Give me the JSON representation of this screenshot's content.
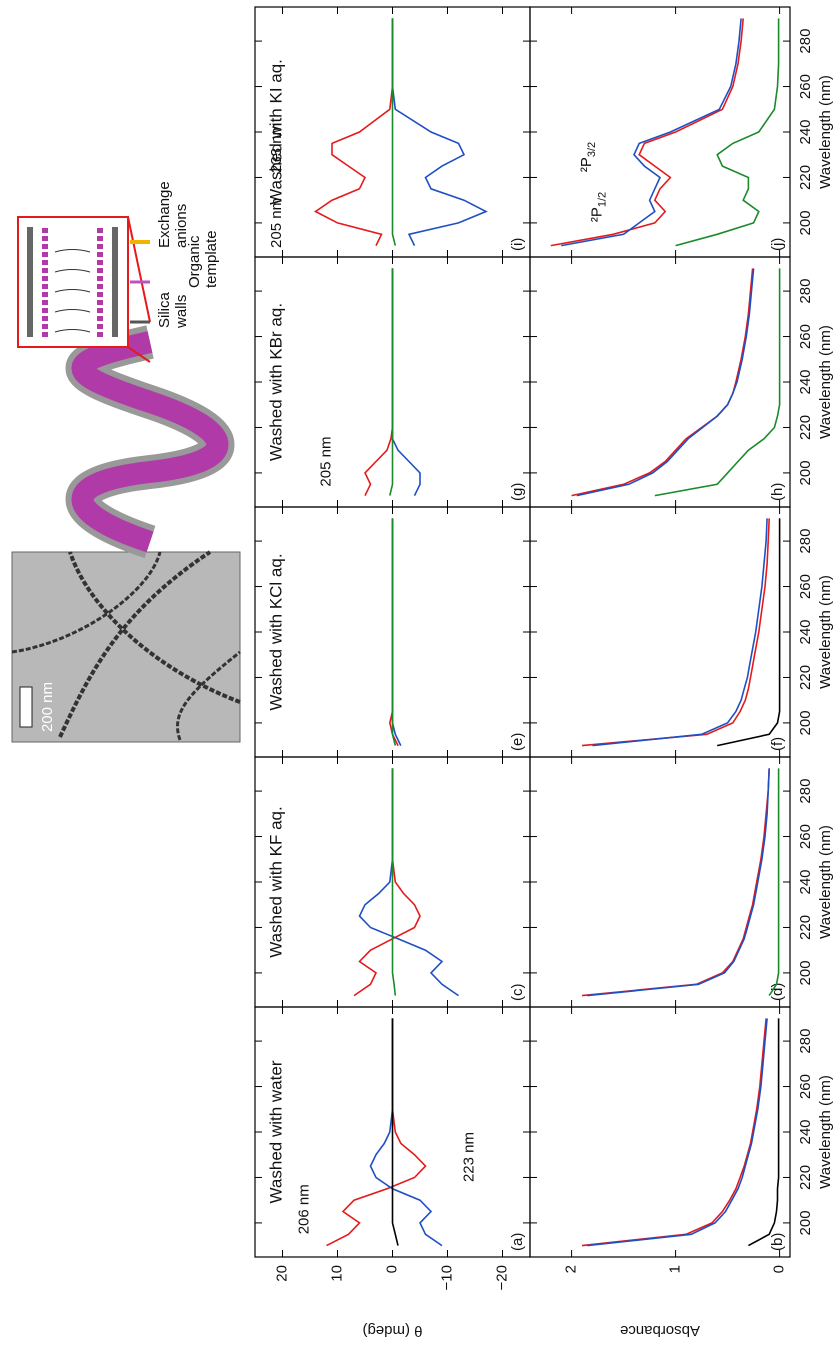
{
  "chart_data": [
    {
      "type": "line",
      "title": "Washed with water",
      "label": "(a)",
      "ylabel": "θ (mdeg)",
      "x": [
        190,
        195,
        200,
        205,
        210,
        215,
        220,
        225,
        230,
        235,
        240,
        250,
        260,
        270,
        280,
        290
      ],
      "series": [
        {
          "color": "#e41a1c",
          "values": [
            12,
            8,
            6,
            9,
            7,
            1,
            -4,
            -6,
            -4,
            -1.5,
            -0.5,
            0,
            0,
            0,
            0,
            0
          ]
        },
        {
          "color": "#1f4fc4",
          "values": [
            -9,
            -6,
            -5,
            -7,
            -5,
            0,
            3,
            4,
            3,
            1.5,
            0.5,
            0,
            0,
            0,
            0,
            0
          ]
        },
        {
          "color": "#000000",
          "values": [
            -1,
            -0.5,
            0,
            0,
            0,
            0,
            0,
            0,
            0,
            0,
            0,
            0,
            0,
            0,
            0,
            0
          ]
        }
      ],
      "annotations": [
        "206 nm",
        "223 nm"
      ],
      "xlim": [
        185,
        295
      ],
      "ylim": [
        -25,
        25
      ],
      "xticks": [
        200,
        220,
        240,
        260,
        280
      ],
      "yticks": [
        {
          "value": -20,
          "label": "−20"
        },
        {
          "value": -10,
          "label": "−10"
        },
        0,
        10,
        20
      ]
    },
    {
      "type": "line",
      "title": "Washed with KF aq.",
      "label": "(c)",
      "x": [
        190,
        195,
        200,
        205,
        210,
        215,
        220,
        225,
        230,
        235,
        240,
        250,
        260,
        270,
        280,
        290
      ],
      "series": [
        {
          "color": "#e41a1c",
          "values": [
            7,
            4,
            3,
            6,
            4,
            0,
            -4,
            -5,
            -4,
            -2,
            -0.5,
            0,
            0,
            0,
            0,
            0
          ]
        },
        {
          "color": "#1f4fc4",
          "values": [
            -12,
            -9,
            -7,
            -9,
            -6,
            -1,
            4,
            6,
            5,
            2.5,
            0.5,
            0,
            0,
            0,
            0,
            0
          ]
        },
        {
          "color": "#1a8a2a",
          "values": [
            -0.5,
            -0.3,
            0,
            0,
            0,
            0,
            0,
            0,
            0,
            0,
            0,
            0,
            0,
            0,
            0,
            0
          ]
        }
      ],
      "xlim": [
        185,
        295
      ],
      "ylim": [
        -25,
        25
      ],
      "xticks": [
        200,
        220,
        240,
        260,
        280
      ],
      "yticks": [
        -20,
        -10,
        0,
        10,
        20
      ]
    },
    {
      "type": "line",
      "title": "Washed with KCl aq.",
      "label": "(e)",
      "x": [
        190,
        195,
        200,
        205,
        210,
        215,
        220,
        225,
        230,
        235,
        240,
        250,
        260,
        270,
        280,
        290
      ],
      "series": [
        {
          "color": "#e41a1c",
          "values": [
            -1,
            0,
            0.5,
            0,
            0,
            0,
            0,
            0,
            0,
            0,
            0,
            0,
            0,
            0,
            0,
            0
          ]
        },
        {
          "color": "#1f4fc4",
          "values": [
            -1.5,
            -0.5,
            0,
            0,
            0,
            0,
            0,
            0,
            0,
            0,
            0,
            0,
            0,
            0,
            0,
            0
          ]
        },
        {
          "color": "#1a8a2a",
          "values": [
            -0.5,
            0,
            0,
            0,
            0,
            0,
            0,
            0,
            0,
            0,
            0,
            0,
            0,
            0,
            0,
            0
          ]
        }
      ],
      "xlim": [
        185,
        295
      ],
      "ylim": [
        -25,
        25
      ],
      "xticks": [
        200,
        220,
        240,
        260,
        280
      ],
      "yticks": [
        -20,
        -10,
        0,
        10,
        20
      ]
    },
    {
      "type": "line",
      "title": "Washed with KBr aq.",
      "label": "(g)",
      "x": [
        190,
        195,
        200,
        205,
        210,
        215,
        220,
        225,
        230,
        235,
        240,
        250,
        260,
        270,
        280,
        290
      ],
      "series": [
        {
          "color": "#e41a1c",
          "values": [
            5,
            4,
            5,
            3,
            1,
            0.3,
            0,
            0,
            0,
            0,
            0,
            0,
            0,
            0,
            0,
            0
          ]
        },
        {
          "color": "#1f4fc4",
          "values": [
            -4,
            -5,
            -5,
            -3,
            -1,
            0,
            0,
            0,
            0,
            0,
            0,
            0,
            0,
            0,
            0,
            0
          ]
        },
        {
          "color": "#1a8a2a",
          "values": [
            0.5,
            0,
            0,
            0,
            0,
            0,
            0,
            0,
            0,
            0,
            0,
            0,
            0,
            0,
            0,
            0
          ]
        }
      ],
      "annotations": [
        "205 nm"
      ],
      "xlim": [
        185,
        295
      ],
      "ylim": [
        -25,
        25
      ],
      "xticks": [
        200,
        220,
        240,
        260,
        280
      ],
      "yticks": [
        -20,
        -10,
        0,
        10,
        20
      ]
    },
    {
      "type": "line",
      "title": "Washed with KI aq.",
      "label": "(i)",
      "x": [
        190,
        195,
        200,
        205,
        210,
        215,
        220,
        225,
        230,
        235,
        240,
        250,
        260,
        270,
        280,
        290
      ],
      "series": [
        {
          "color": "#e41a1c",
          "values": [
            3,
            2,
            10,
            14,
            11,
            6,
            5,
            8,
            11,
            11,
            6,
            0.5,
            0,
            0,
            0,
            0
          ]
        },
        {
          "color": "#1f4fc4",
          "values": [
            -4,
            -3,
            -12,
            -17,
            -13,
            -7,
            -6,
            -9,
            -13,
            -12,
            -7,
            -0.5,
            0,
            0,
            0,
            0
          ]
        },
        {
          "color": "#1a8a2a",
          "values": [
            -0.5,
            0,
            0,
            0,
            0,
            0,
            0,
            0,
            0,
            0,
            0,
            0,
            0,
            0,
            0,
            0
          ]
        }
      ],
      "annotations": [
        "205 nm",
        "233 nm"
      ],
      "xlim": [
        185,
        295
      ],
      "ylim": [
        -25,
        25
      ],
      "xticks": [
        200,
        220,
        240,
        260,
        280
      ],
      "yticks": [
        -20,
        -10,
        0,
        10,
        20
      ]
    },
    {
      "type": "line",
      "label": "(b)",
      "ylabel": "Absorbance",
      "xlabel": "Wavelength (nm)",
      "x": [
        190,
        195,
        200,
        205,
        210,
        215,
        220,
        225,
        230,
        235,
        240,
        250,
        260,
        270,
        280,
        290
      ],
      "series": [
        {
          "color": "#e41a1c",
          "values": [
            1.9,
            0.9,
            0.65,
            0.55,
            0.48,
            0.42,
            0.38,
            0.34,
            0.31,
            0.28,
            0.26,
            0.22,
            0.19,
            0.17,
            0.15,
            0.13
          ]
        },
        {
          "color": "#1f4fc4",
          "values": [
            1.85,
            0.85,
            0.62,
            0.52,
            0.46,
            0.4,
            0.36,
            0.33,
            0.3,
            0.27,
            0.25,
            0.21,
            0.18,
            0.16,
            0.14,
            0.12
          ]
        },
        {
          "color": "#000000",
          "values": [
            0.3,
            0.1,
            0.05,
            0.03,
            0.02,
            0.02,
            0.01,
            0.01,
            0.01,
            0.01,
            0.01,
            0.01,
            0.01,
            0.01,
            0.01,
            0.01
          ]
        }
      ],
      "xlim": [
        185,
        295
      ],
      "ylim": [
        -0.1,
        2.4
      ],
      "xticks": [
        200,
        220,
        240,
        260,
        280
      ],
      "yticks": [
        0,
        1,
        2
      ]
    },
    {
      "type": "line",
      "label": "(d)",
      "xlabel": "Wavelength (nm)",
      "x": [
        190,
        195,
        200,
        205,
        210,
        215,
        220,
        225,
        230,
        235,
        240,
        250,
        260,
        270,
        280,
        290
      ],
      "series": [
        {
          "color": "#e41a1c",
          "values": [
            1.9,
            0.8,
            0.55,
            0.45,
            0.4,
            0.35,
            0.32,
            0.29,
            0.26,
            0.24,
            0.22,
            0.18,
            0.15,
            0.13,
            0.11,
            0.1
          ]
        },
        {
          "color": "#1f4fc4",
          "values": [
            1.85,
            0.78,
            0.53,
            0.44,
            0.39,
            0.34,
            0.31,
            0.28,
            0.25,
            0.23,
            0.21,
            0.17,
            0.14,
            0.12,
            0.11,
            0.1
          ]
        },
        {
          "color": "#1a8a2a",
          "values": [
            0.1,
            0.03,
            0.01,
            0.01,
            0.01,
            0.01,
            0.01,
            0.01,
            0.01,
            0.01,
            0.01,
            0.01,
            0.01,
            0.01,
            0.01,
            0.01
          ]
        }
      ],
      "xlim": [
        185,
        295
      ],
      "ylim": [
        -0.1,
        2.4
      ],
      "xticks": [
        200,
        220,
        240,
        260,
        280
      ],
      "yticks": [
        0,
        1,
        2
      ]
    },
    {
      "type": "line",
      "label": "(f)",
      "xlabel": "Wavelength (nm)",
      "x": [
        190,
        195,
        200,
        205,
        210,
        215,
        220,
        225,
        230,
        235,
        240,
        250,
        260,
        270,
        280,
        290
      ],
      "series": [
        {
          "color": "#e41a1c",
          "values": [
            1.9,
            0.7,
            0.45,
            0.38,
            0.33,
            0.3,
            0.28,
            0.26,
            0.24,
            0.22,
            0.2,
            0.17,
            0.14,
            0.12,
            0.11,
            0.1
          ]
        },
        {
          "color": "#1f4fc4",
          "values": [
            1.8,
            0.75,
            0.5,
            0.42,
            0.37,
            0.34,
            0.31,
            0.29,
            0.27,
            0.25,
            0.23,
            0.2,
            0.17,
            0.15,
            0.13,
            0.12
          ]
        },
        {
          "color": "#000000",
          "values": [
            0.6,
            0.1,
            0.02,
            0,
            0,
            0,
            0,
            0,
            0,
            0,
            0,
            0,
            0,
            0,
            0,
            0
          ]
        }
      ],
      "xlim": [
        185,
        295
      ],
      "ylim": [
        -0.1,
        2.4
      ],
      "xticks": [
        200,
        220,
        240,
        260,
        280
      ],
      "yticks": [
        0,
        1,
        2
      ]
    },
    {
      "type": "line",
      "label": "(h)",
      "xlabel": "Wavelength (nm)",
      "x": [
        190,
        195,
        200,
        205,
        210,
        215,
        220,
        225,
        230,
        235,
        240,
        250,
        260,
        270,
        280,
        290
      ],
      "series": [
        {
          "color": "#e41a1c",
          "values": [
            2.0,
            1.5,
            1.25,
            1.1,
            1.0,
            0.9,
            0.75,
            0.6,
            0.5,
            0.45,
            0.42,
            0.37,
            0.33,
            0.3,
            0.28,
            0.26
          ]
        },
        {
          "color": "#1f4fc4",
          "values": [
            1.95,
            1.45,
            1.22,
            1.08,
            0.98,
            0.88,
            0.74,
            0.6,
            0.5,
            0.45,
            0.41,
            0.36,
            0.32,
            0.29,
            0.27,
            0.25
          ]
        },
        {
          "color": "#1a8a2a",
          "values": [
            1.2,
            0.6,
            0.5,
            0.4,
            0.3,
            0.15,
            0.05,
            0.02,
            0,
            0,
            0,
            0,
            0,
            0,
            0,
            0
          ]
        }
      ],
      "xlim": [
        185,
        295
      ],
      "ylim": [
        -0.1,
        2.4
      ],
      "xticks": [
        200,
        220,
        240,
        260,
        280
      ],
      "yticks": [
        0,
        1,
        2
      ]
    },
    {
      "type": "line",
      "label": "(j)",
      "xlabel": "Wavelength (nm)",
      "x": [
        190,
        195,
        200,
        205,
        210,
        215,
        220,
        225,
        230,
        235,
        240,
        250,
        260,
        270,
        280,
        290
      ],
      "series": [
        {
          "color": "#e41a1c",
          "values": [
            2.2,
            1.6,
            1.2,
            1.1,
            1.2,
            1.15,
            1.05,
            1.2,
            1.35,
            1.3,
            1.0,
            0.55,
            0.45,
            0.4,
            0.37,
            0.35
          ]
        },
        {
          "color": "#1f4fc4",
          "values": [
            2.1,
            1.5,
            1.35,
            1.2,
            1.25,
            1.2,
            1.15,
            1.3,
            1.4,
            1.35,
            1.05,
            0.58,
            0.47,
            0.42,
            0.39,
            0.37
          ]
        },
        {
          "color": "#1a8a2a",
          "values": [
            1.0,
            0.6,
            0.25,
            0.2,
            0.35,
            0.3,
            0.3,
            0.55,
            0.6,
            0.45,
            0.2,
            0.05,
            0.02,
            0.01,
            0.01,
            0.01
          ]
        }
      ],
      "annotations": [
        {
          "text": "²P",
          "sub": "1/2"
        },
        {
          "text": "²P",
          "sub": "3/2"
        }
      ],
      "xlim": [
        185,
        295
      ],
      "ylim": [
        -0.1,
        2.4
      ],
      "xticks": [
        200,
        220,
        240,
        260,
        280
      ],
      "yticks": [
        0,
        1,
        2
      ]
    }
  ],
  "inset": {
    "scale_bar": "200 nm",
    "labels": [
      [
        "Exchange",
        "anions"
      ],
      [
        "Organic",
        "template"
      ],
      [
        "Silica",
        "walls"
      ]
    ]
  }
}
